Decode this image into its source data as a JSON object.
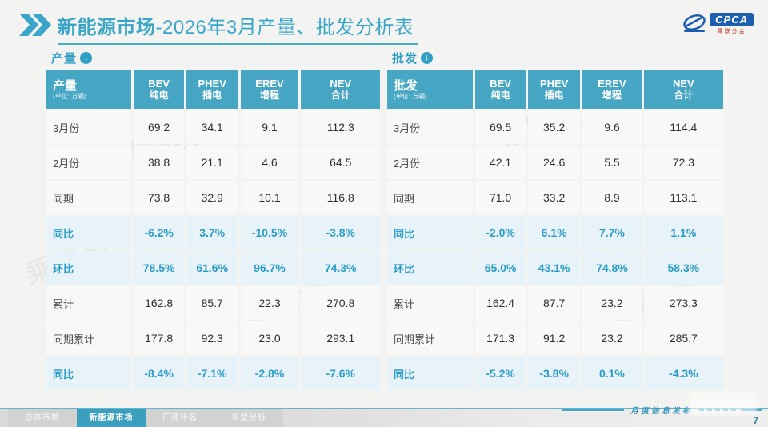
{
  "header": {
    "title_bold": "新能源市场",
    "title_rest": "-2026年3月产量、批发分析表"
  },
  "logo": {
    "text": "CPCA",
    "subtext": "乘联分会"
  },
  "colors": {
    "accent": "#3aa5c7",
    "table_header_bg": "#47a6c3",
    "highlight_row_bg": "#e8f3f9",
    "percent_text": "#2b9cc7"
  },
  "tables": [
    {
      "section_label": "产量",
      "unit_note": "(单位: 万辆)",
      "columns": [
        {
          "en": "BEV",
          "zh": "纯电"
        },
        {
          "en": "PHEV",
          "zh": "插电"
        },
        {
          "en": "EREV",
          "zh": "增程"
        },
        {
          "en": "NEV",
          "zh": "合计"
        }
      ],
      "rows": [
        {
          "label": "3月份",
          "values": [
            "69.2",
            "34.1",
            "9.1",
            "112.3"
          ],
          "highlight": false
        },
        {
          "label": "2月份",
          "values": [
            "38.8",
            "21.1",
            "4.6",
            "64.5"
          ],
          "highlight": false
        },
        {
          "label": "同期",
          "values": [
            "73.8",
            "32.9",
            "10.1",
            "116.8"
          ],
          "highlight": false
        },
        {
          "label": "同比",
          "values": [
            "-6.2%",
            "3.7%",
            "-10.5%",
            "-3.8%"
          ],
          "highlight": true
        },
        {
          "label": "环比",
          "values": [
            "78.5%",
            "61.6%",
            "96.7%",
            "74.3%"
          ],
          "highlight": true
        },
        {
          "label": "累计",
          "values": [
            "162.8",
            "85.7",
            "22.3",
            "270.8"
          ],
          "highlight": false
        },
        {
          "label": "同期累计",
          "values": [
            "177.8",
            "92.3",
            "23.0",
            "293.1"
          ],
          "highlight": false
        },
        {
          "label": "同比",
          "values": [
            "-8.4%",
            "-7.1%",
            "-2.8%",
            "-7.6%"
          ],
          "highlight": true
        }
      ]
    },
    {
      "section_label": "批发",
      "unit_note": "(单位: 万辆)",
      "columns": [
        {
          "en": "BEV",
          "zh": "纯电"
        },
        {
          "en": "PHEV",
          "zh": "插电"
        },
        {
          "en": "EREV",
          "zh": "增程"
        },
        {
          "en": "NEV",
          "zh": "合计"
        }
      ],
      "rows": [
        {
          "label": "3月份",
          "values": [
            "69.5",
            "35.2",
            "9.6",
            "114.4"
          ],
          "highlight": false
        },
        {
          "label": "2月份",
          "values": [
            "42.1",
            "24.6",
            "5.5",
            "72.3"
          ],
          "highlight": false
        },
        {
          "label": "同期",
          "values": [
            "71.0",
            "33.2",
            "8.9",
            "113.1"
          ],
          "highlight": false
        },
        {
          "label": "同比",
          "values": [
            "-2.0%",
            "6.1%",
            "7.7%",
            "1.1%"
          ],
          "highlight": true
        },
        {
          "label": "环比",
          "values": [
            "65.0%",
            "43.1%",
            "74.8%",
            "58.3%"
          ],
          "highlight": true
        },
        {
          "label": "累计",
          "values": [
            "162.4",
            "87.7",
            "23.2",
            "273.3"
          ],
          "highlight": false
        },
        {
          "label": "同期累计",
          "values": [
            "171.3",
            "91.2",
            "23.2",
            "285.7"
          ],
          "highlight": false
        },
        {
          "label": "同比",
          "values": [
            "-5.2%",
            "-3.8%",
            "0.1%",
            "-4.3%"
          ],
          "highlight": true
        }
      ]
    }
  ],
  "footer": {
    "tabs": [
      {
        "label": "总体市场",
        "active": false
      },
      {
        "label": "新能源市场",
        "active": true
      },
      {
        "label": "厂商排名",
        "active": false
      },
      {
        "label": "车型分析",
        "active": false
      }
    ],
    "note": "月度信息发布",
    "page_number": "7"
  }
}
